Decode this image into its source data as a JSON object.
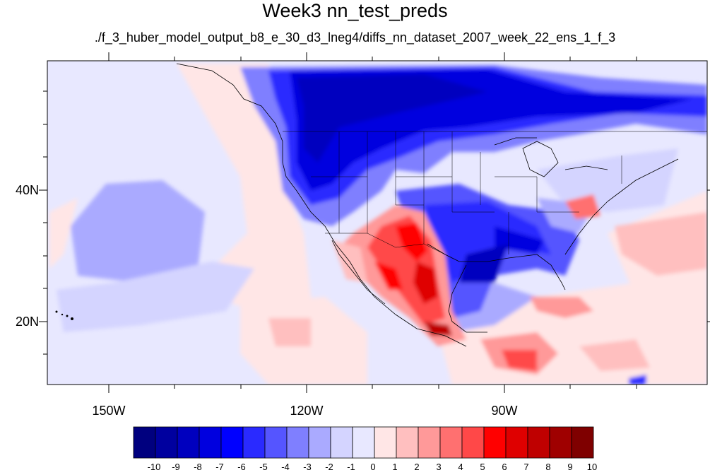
{
  "title": "Week3 nn_test_preds",
  "subtitle": "./f_3_huber_model_output_b8_e_30_d3_lneg4/diffs_nn_dataset_2007_week_22_ens_1_f_3",
  "axes": {
    "lat_labels": [
      "40N",
      "20N"
    ],
    "lon_labels": [
      "150W",
      "120W",
      "90W"
    ]
  },
  "colorbar": {
    "labels": [
      "-10",
      "-9",
      "-8",
      "-7",
      "-6",
      "-5",
      "-4",
      "-3",
      "-2",
      "-1",
      "0",
      "1",
      "2",
      "3",
      "4",
      "5",
      "6",
      "7",
      "8",
      "9",
      "10"
    ],
    "colors": [
      "#00007f",
      "#00009f",
      "#0000bf",
      "#0000df",
      "#0000ff",
      "#2a2aff",
      "#5555ff",
      "#7f7fff",
      "#aaaaff",
      "#d4d4ff",
      "#e8e8ff",
      "#ffe6e6",
      "#ffbfbf",
      "#ff9999",
      "#ff7070",
      "#ff4848",
      "#ff0000",
      "#df0000",
      "#bf0000",
      "#9f0000",
      "#7f0000"
    ]
  }
}
